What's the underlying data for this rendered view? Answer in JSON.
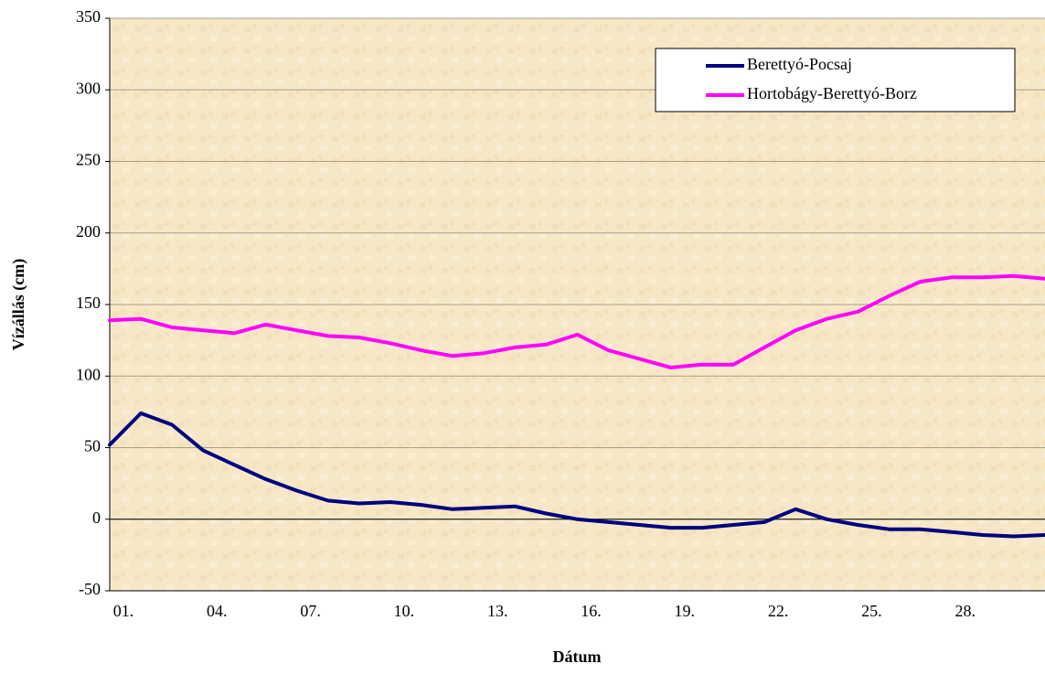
{
  "chart_data": {
    "type": "line",
    "x_label": "Dátum",
    "y_label": "Vízállás (cm)",
    "categories": [
      "01.",
      null,
      null,
      "04.",
      null,
      null,
      "07.",
      null,
      null,
      "10.",
      null,
      null,
      "13.",
      null,
      null,
      "16.",
      null,
      null,
      "19.",
      null,
      null,
      "22.",
      null,
      null,
      "25.",
      null,
      null,
      "28.",
      null,
      null,
      null
    ],
    "series": [
      {
        "name": "Berettyó-Pocsaj",
        "color": "#000080",
        "values": [
          52,
          74,
          66,
          48,
          38,
          28,
          20,
          13,
          11,
          12,
          10,
          7,
          8,
          9,
          4,
          0,
          -2,
          -4,
          -6,
          -6,
          -4,
          -2,
          7,
          0,
          -4,
          -7,
          -7,
          -9,
          -11,
          -12,
          -11
        ]
      },
      {
        "name": "Hortobágy-Berettyó-Borz",
        "color": "#ff00ff",
        "values": [
          139,
          140,
          134,
          132,
          130,
          136,
          132,
          128,
          127,
          123,
          118,
          114,
          116,
          120,
          122,
          129,
          118,
          112,
          106,
          108,
          108,
          120,
          132,
          140,
          145,
          156,
          166,
          169,
          169,
          170,
          168
        ]
      }
    ],
    "ylim": [
      -50,
      350
    ],
    "yticks": [
      -50,
      0,
      50,
      100,
      150,
      200,
      250,
      300,
      350
    ],
    "grid": true,
    "legend": "top-right"
  }
}
